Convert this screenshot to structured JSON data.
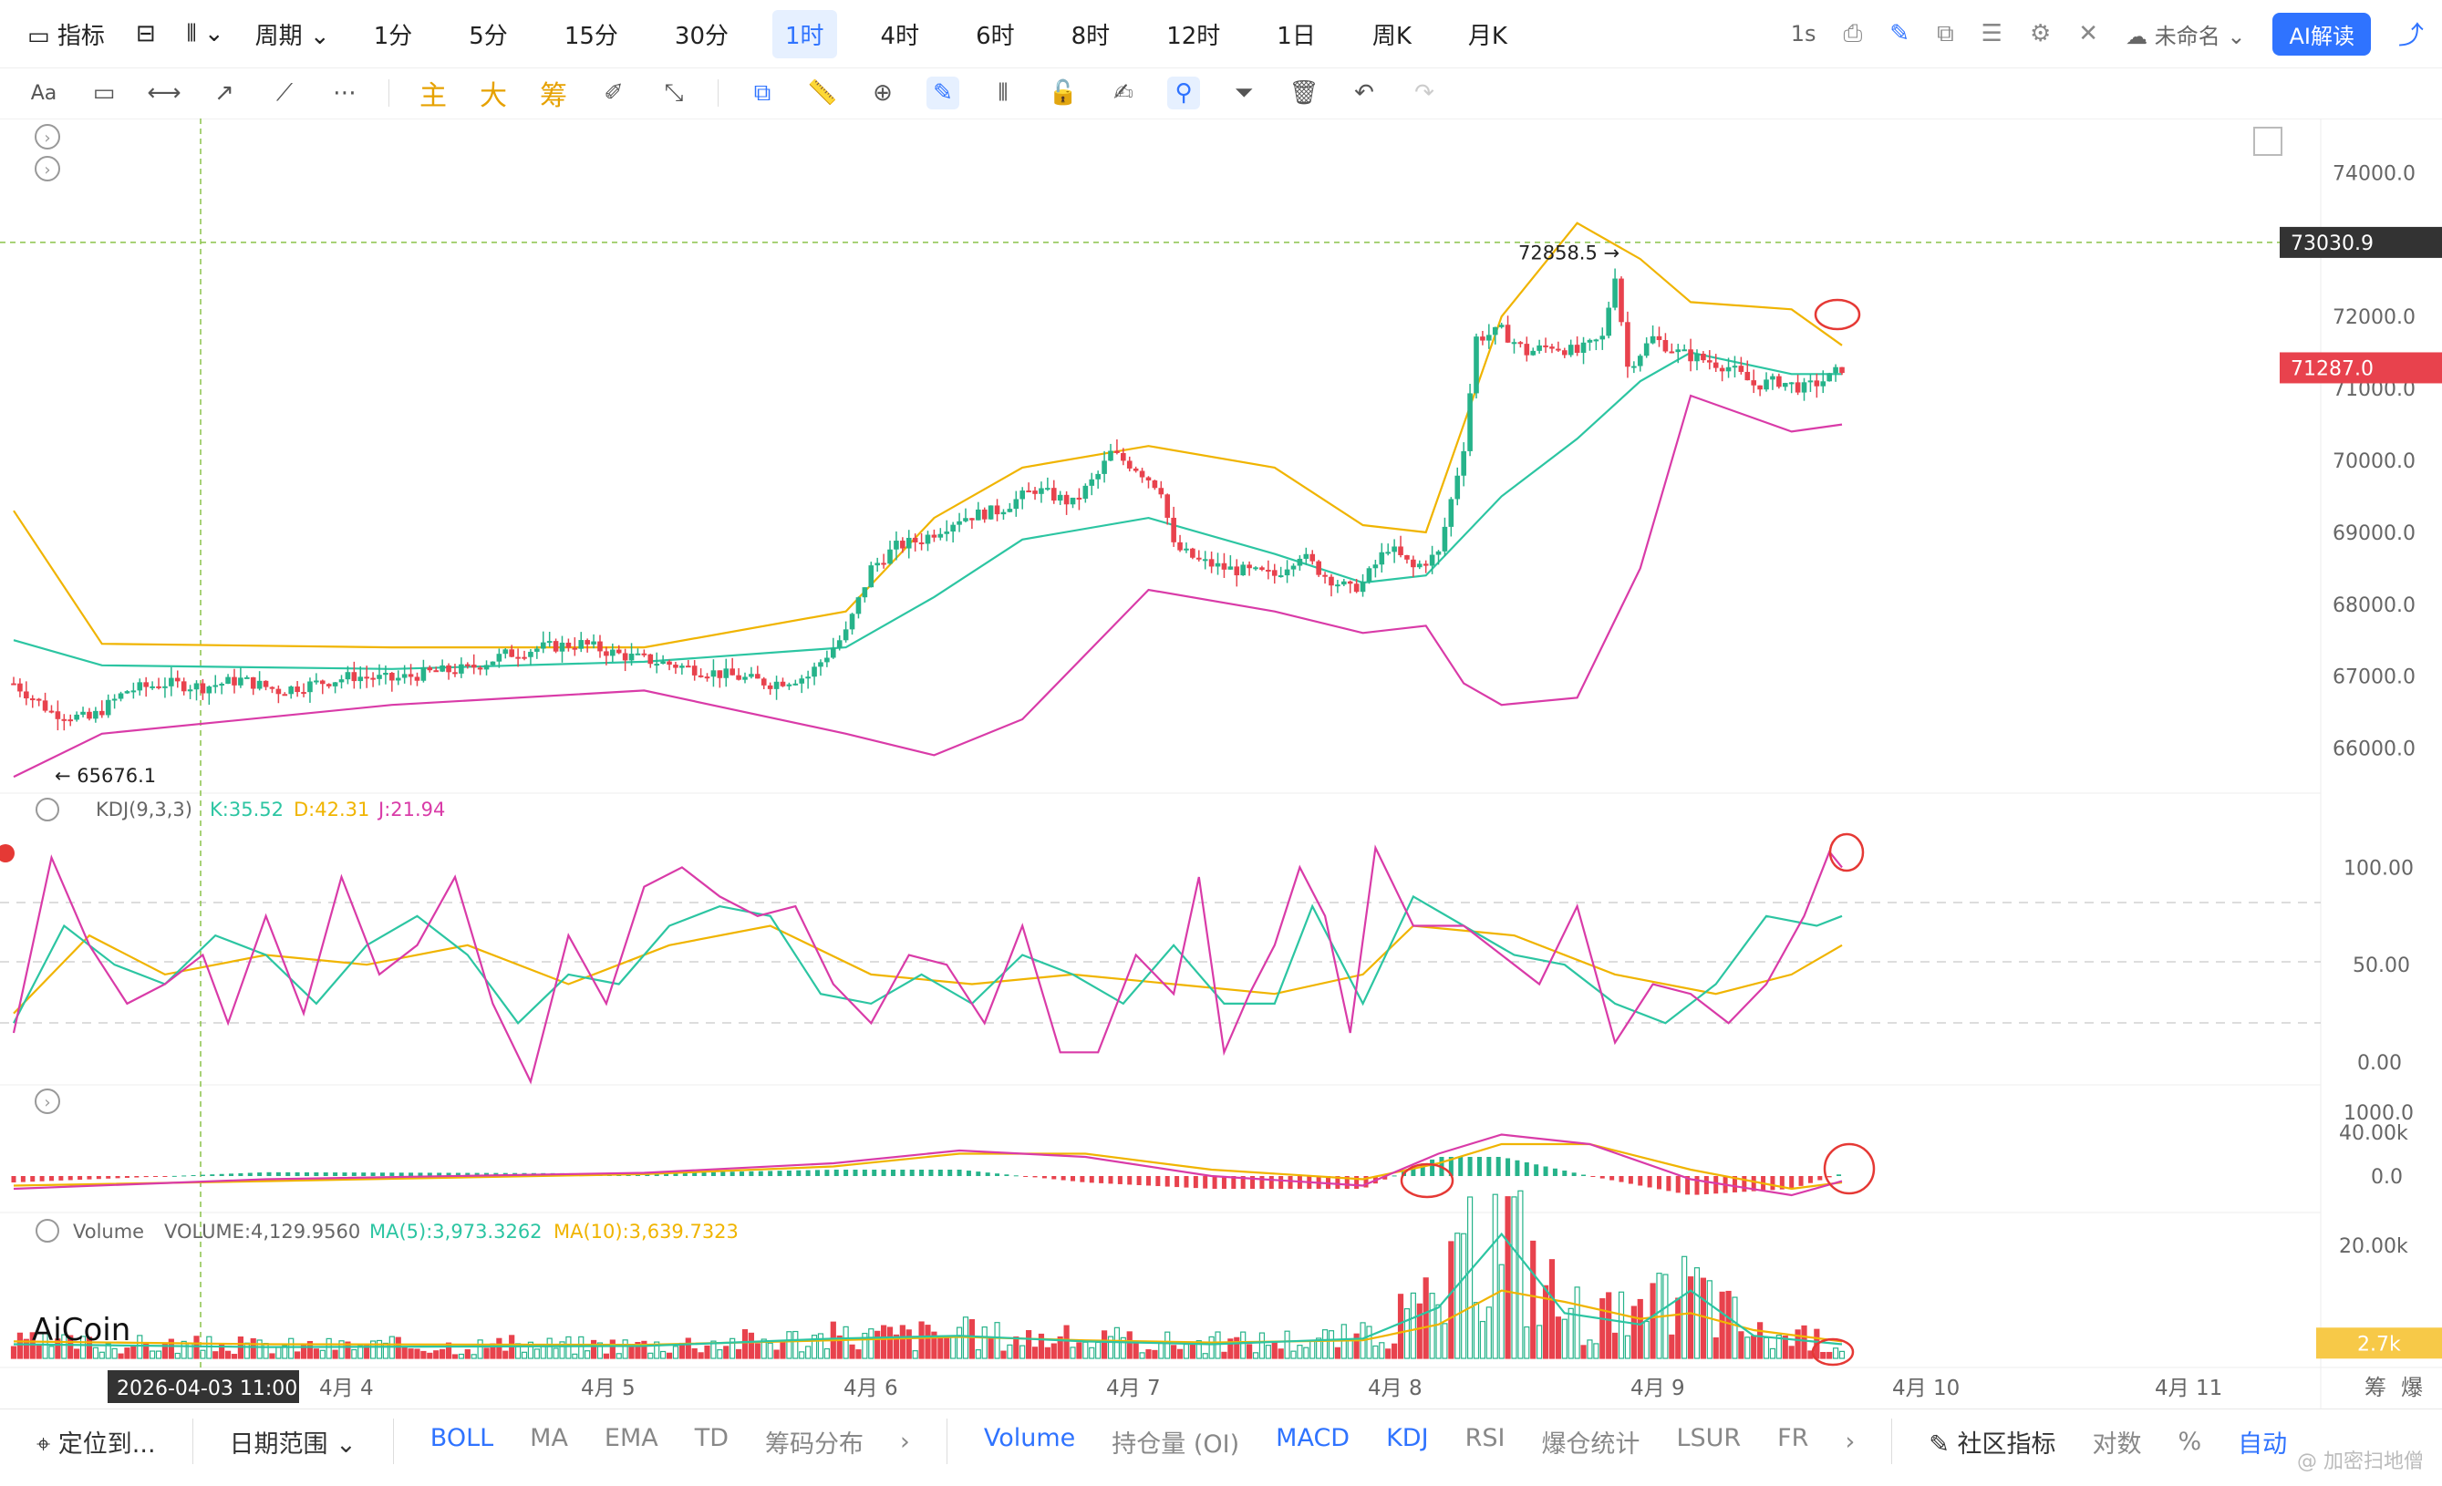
{
  "toolbar": {
    "indicator_label": "指标",
    "period_label": "周期",
    "periods": [
      "1分",
      "5分",
      "15分",
      "30分",
      "1时",
      "4时",
      "6时",
      "8时",
      "12时",
      "1日",
      "周K",
      "月K"
    ],
    "active_period": "1时",
    "refresh": "1s",
    "layout_name": "未命名",
    "ai_button": "AI解读",
    "drawing_tools": [
      "Aa",
      "rectangle",
      "horizontal-line",
      "ray",
      "trend-line",
      "more"
    ],
    "chip_labels": [
      "主",
      "大",
      "筹"
    ]
  },
  "price_axis": {
    "ticks": [
      "74000.0",
      "73000.0",
      "72000.0",
      "71000.0",
      "70000.0",
      "69000.0",
      "68000.0",
      "67000.0",
      "66000.0"
    ],
    "crosshair_label": "73030.9",
    "last_price_label": "71287.0",
    "high_label": "72858.5 →",
    "low_label": "← 65676.1"
  },
  "kdj": {
    "title": "KDJ(9,3,3)",
    "k_label": "K:35.52",
    "d_label": "D:42.31",
    "j_label": "J:21.94",
    "ticks": [
      "100.00",
      "50.00",
      "0.00"
    ]
  },
  "macd": {
    "ticks": [
      "1000.0",
      "0.0"
    ]
  },
  "volume": {
    "title": "Volume",
    "vol_label": "VOLUME:4,129.9560",
    "ma5_label": "MA(5):3,973.3262",
    "ma10_label": "MA(10):3,639.7323",
    "ticks": [
      "40.00k",
      "20.00k"
    ],
    "last_label": "2.7k"
  },
  "logo": "AiCoin",
  "time_axis": {
    "crosshair_label": "2026-04-03 11:00",
    "dates": [
      "4月 4",
      "4月 5",
      "4月 6",
      "4月 7",
      "4月 8",
      "4月 9",
      "4月 10",
      "4月 11"
    ],
    "right_labels": [
      "筹",
      "爆"
    ]
  },
  "bottom_bar": {
    "locate": "定位到...",
    "date_range": "日期范围",
    "main_indicators": [
      "BOLL",
      "MA",
      "EMA",
      "TD",
      "筹码分布"
    ],
    "sub_indicators": [
      "Volume",
      "持仓量 (OI)",
      "MACD",
      "KDJ",
      "RSI",
      "爆仓统计",
      "LSUR",
      "FR"
    ],
    "community": "社区指标",
    "log": "对数",
    "percent": "%",
    "auto": "自动",
    "watermark": "@ 加密扫地僧"
  },
  "colors": {
    "up": "#26b38a",
    "down": "#e8424d",
    "boll_upper": "#f0b400",
    "boll_mid": "#2cc5a2",
    "boll_lower": "#d93ba8",
    "accent": "#2f73ff",
    "crosshair": "#8bc34a"
  },
  "chart_data": {
    "type": "candlestick",
    "symbol_interval": "1h",
    "y_range": [
      65500,
      74500
    ],
    "price_path": [
      [
        0,
        66900
      ],
      [
        6,
        66500
      ],
      [
        12,
        66400
      ],
      [
        18,
        66800
      ],
      [
        24,
        66900
      ],
      [
        30,
        66850
      ],
      [
        36,
        66950
      ],
      [
        42,
        66800
      ],
      [
        48,
        66900
      ],
      [
        54,
        67000
      ],
      [
        60,
        66950
      ],
      [
        66,
        67050
      ],
      [
        72,
        67100
      ],
      [
        78,
        67300
      ],
      [
        84,
        67400
      ],
      [
        90,
        67450
      ],
      [
        96,
        67300
      ],
      [
        102,
        67200
      ],
      [
        108,
        67100
      ],
      [
        114,
        67000
      ],
      [
        120,
        66900
      ],
      [
        126,
        67000
      ],
      [
        132,
        67600
      ],
      [
        136,
        68500
      ],
      [
        140,
        68800
      ],
      [
        144,
        68900
      ],
      [
        150,
        69200
      ],
      [
        156,
        69300
      ],
      [
        162,
        69600
      ],
      [
        168,
        69400
      ],
      [
        172,
        69800
      ],
      [
        174,
        70100
      ],
      [
        178,
        69900
      ],
      [
        182,
        69600
      ],
      [
        184,
        68800
      ],
      [
        188,
        68600
      ],
      [
        192,
        68500
      ],
      [
        196,
        68450
      ],
      [
        200,
        68400
      ],
      [
        204,
        68700
      ],
      [
        208,
        68400
      ],
      [
        212,
        68200
      ],
      [
        214,
        68300
      ],
      [
        218,
        68800
      ],
      [
        222,
        68500
      ],
      [
        226,
        68700
      ],
      [
        230,
        70200
      ],
      [
        232,
        71700
      ],
      [
        236,
        71800
      ],
      [
        240,
        71500
      ],
      [
        244,
        71600
      ],
      [
        248,
        71500
      ],
      [
        252,
        71700
      ],
      [
        254,
        72600
      ],
      [
        256,
        71300
      ],
      [
        258,
        71500
      ],
      [
        260,
        71700
      ],
      [
        264,
        71500
      ],
      [
        268,
        71400
      ],
      [
        272,
        71300
      ],
      [
        276,
        71050
      ],
      [
        280,
        71100
      ],
      [
        284,
        71000
      ],
      [
        288,
        71150
      ],
      [
        290,
        71287
      ]
    ],
    "bollinger": {
      "upper": [
        [
          0,
          69300
        ],
        [
          14,
          67450
        ],
        [
          60,
          67400
        ],
        [
          100,
          67400
        ],
        [
          132,
          67900
        ],
        [
          146,
          69200
        ],
        [
          160,
          69900
        ],
        [
          180,
          70200
        ],
        [
          200,
          69900
        ],
        [
          214,
          69100
        ],
        [
          224,
          69000
        ],
        [
          236,
          72000
        ],
        [
          248,
          73300
        ],
        [
          258,
          72800
        ],
        [
          266,
          72200
        ],
        [
          282,
          72100
        ],
        [
          290,
          71600
        ]
      ],
      "mid": [
        [
          0,
          67500
        ],
        [
          14,
          67150
        ],
        [
          60,
          67100
        ],
        [
          100,
          67200
        ],
        [
          132,
          67400
        ],
        [
          146,
          68100
        ],
        [
          160,
          68900
        ],
        [
          180,
          69200
        ],
        [
          200,
          68700
        ],
        [
          214,
          68300
        ],
        [
          224,
          68400
        ],
        [
          236,
          69500
        ],
        [
          248,
          70300
        ],
        [
          258,
          71100
        ],
        [
          266,
          71500
        ],
        [
          282,
          71200
        ],
        [
          290,
          71200
        ]
      ],
      "lower": [
        [
          0,
          65600
        ],
        [
          14,
          66200
        ],
        [
          60,
          66600
        ],
        [
          100,
          66800
        ],
        [
          132,
          66200
        ],
        [
          146,
          65900
        ],
        [
          160,
          66400
        ],
        [
          180,
          68200
        ],
        [
          200,
          67900
        ],
        [
          214,
          67600
        ],
        [
          224,
          67700
        ],
        [
          230,
          66900
        ],
        [
          236,
          66600
        ],
        [
          248,
          66700
        ],
        [
          258,
          68500
        ],
        [
          266,
          70900
        ],
        [
          282,
          70400
        ],
        [
          290,
          70500
        ]
      ]
    },
    "kdj_series": {
      "k": [
        [
          0,
          20
        ],
        [
          8,
          70
        ],
        [
          16,
          50
        ],
        [
          24,
          40
        ],
        [
          32,
          65
        ],
        [
          40,
          55
        ],
        [
          48,
          30
        ],
        [
          56,
          60
        ],
        [
          64,
          75
        ],
        [
          72,
          55
        ],
        [
          80,
          20
        ],
        [
          88,
          45
        ],
        [
          96,
          40
        ],
        [
          104,
          70
        ],
        [
          112,
          80
        ],
        [
          120,
          75
        ],
        [
          128,
          35
        ],
        [
          136,
          30
        ],
        [
          144,
          45
        ],
        [
          152,
          30
        ],
        [
          160,
          55
        ],
        [
          168,
          45
        ],
        [
          176,
          30
        ],
        [
          184,
          60
        ],
        [
          192,
          30
        ],
        [
          200,
          30
        ],
        [
          206,
          80
        ],
        [
          214,
          30
        ],
        [
          222,
          85
        ],
        [
          230,
          70
        ],
        [
          238,
          55
        ],
        [
          246,
          50
        ],
        [
          254,
          30
        ],
        [
          262,
          20
        ],
        [
          270,
          40
        ],
        [
          278,
          75
        ],
        [
          286,
          70
        ],
        [
          290,
          75
        ]
      ],
      "d": [
        [
          0,
          25
        ],
        [
          12,
          65
        ],
        [
          24,
          45
        ],
        [
          40,
          55
        ],
        [
          56,
          50
        ],
        [
          72,
          60
        ],
        [
          88,
          40
        ],
        [
          104,
          60
        ],
        [
          120,
          70
        ],
        [
          136,
          45
        ],
        [
          152,
          40
        ],
        [
          168,
          45
        ],
        [
          184,
          40
        ],
        [
          200,
          35
        ],
        [
          214,
          45
        ],
        [
          222,
          70
        ],
        [
          238,
          65
        ],
        [
          254,
          45
        ],
        [
          270,
          35
        ],
        [
          282,
          45
        ],
        [
          290,
          60
        ]
      ],
      "j": [
        [
          0,
          15
        ],
        [
          6,
          105
        ],
        [
          12,
          60
        ],
        [
          18,
          30
        ],
        [
          24,
          40
        ],
        [
          30,
          55
        ],
        [
          34,
          20
        ],
        [
          40,
          75
        ],
        [
          46,
          25
        ],
        [
          52,
          95
        ],
        [
          58,
          45
        ],
        [
          64,
          60
        ],
        [
          70,
          95
        ],
        [
          76,
          30
        ],
        [
          82,
          -10
        ],
        [
          88,
          65
        ],
        [
          94,
          30
        ],
        [
          100,
          90
        ],
        [
          106,
          100
        ],
        [
          112,
          85
        ],
        [
          118,
          75
        ],
        [
          124,
          80
        ],
        [
          130,
          40
        ],
        [
          136,
          20
        ],
        [
          142,
          55
        ],
        [
          148,
          50
        ],
        [
          154,
          20
        ],
        [
          160,
          70
        ],
        [
          166,
          5
        ],
        [
          172,
          5
        ],
        [
          178,
          55
        ],
        [
          184,
          35
        ],
        [
          188,
          95
        ],
        [
          192,
          5
        ],
        [
          196,
          35
        ],
        [
          200,
          60
        ],
        [
          204,
          100
        ],
        [
          208,
          75
        ],
        [
          212,
          15
        ],
        [
          216,
          110
        ],
        [
          222,
          70
        ],
        [
          230,
          70
        ],
        [
          236,
          55
        ],
        [
          242,
          40
        ],
        [
          248,
          80
        ],
        [
          254,
          10
        ],
        [
          260,
          40
        ],
        [
          266,
          35
        ],
        [
          272,
          20
        ],
        [
          278,
          40
        ],
        [
          284,
          75
        ],
        [
          288,
          108
        ],
        [
          290,
          100
        ]
      ]
    },
    "macd_series": {
      "dif": [
        [
          0,
          -200
        ],
        [
          40,
          -50
        ],
        [
          100,
          50
        ],
        [
          130,
          200
        ],
        [
          150,
          400
        ],
        [
          170,
          300
        ],
        [
          190,
          0
        ],
        [
          214,
          -150
        ],
        [
          226,
          350
        ],
        [
          236,
          650
        ],
        [
          250,
          500
        ],
        [
          266,
          -50
        ],
        [
          282,
          -300
        ],
        [
          290,
          -80
        ]
      ],
      "dea": [
        [
          0,
          -150
        ],
        [
          40,
          -80
        ],
        [
          100,
          30
        ],
        [
          130,
          150
        ],
        [
          150,
          350
        ],
        [
          170,
          350
        ],
        [
          190,
          100
        ],
        [
          214,
          -50
        ],
        [
          226,
          200
        ],
        [
          236,
          500
        ],
        [
          250,
          500
        ],
        [
          266,
          100
        ],
        [
          282,
          -200
        ],
        [
          290,
          -100
        ]
      ]
    },
    "volume_ma": {
      "ma5": [
        [
          0,
          2500
        ],
        [
          40,
          2000
        ],
        [
          100,
          2200
        ],
        [
          130,
          3500
        ],
        [
          150,
          4000
        ],
        [
          170,
          3000
        ],
        [
          190,
          2500
        ],
        [
          214,
          3500
        ],
        [
          226,
          9000
        ],
        [
          236,
          22000
        ],
        [
          246,
          8000
        ],
        [
          258,
          6000
        ],
        [
          266,
          12000
        ],
        [
          276,
          4000
        ],
        [
          290,
          2500
        ]
      ],
      "ma10": [
        [
          0,
          3000
        ],
        [
          40,
          2500
        ],
        [
          100,
          2400
        ],
        [
          130,
          3200
        ],
        [
          150,
          3800
        ],
        [
          170,
          3200
        ],
        [
          190,
          2800
        ],
        [
          214,
          3200
        ],
        [
          226,
          6000
        ],
        [
          236,
          12000
        ],
        [
          246,
          10000
        ],
        [
          258,
          7000
        ],
        [
          266,
          8000
        ],
        [
          276,
          5000
        ],
        [
          290,
          3000
        ]
      ]
    }
  }
}
